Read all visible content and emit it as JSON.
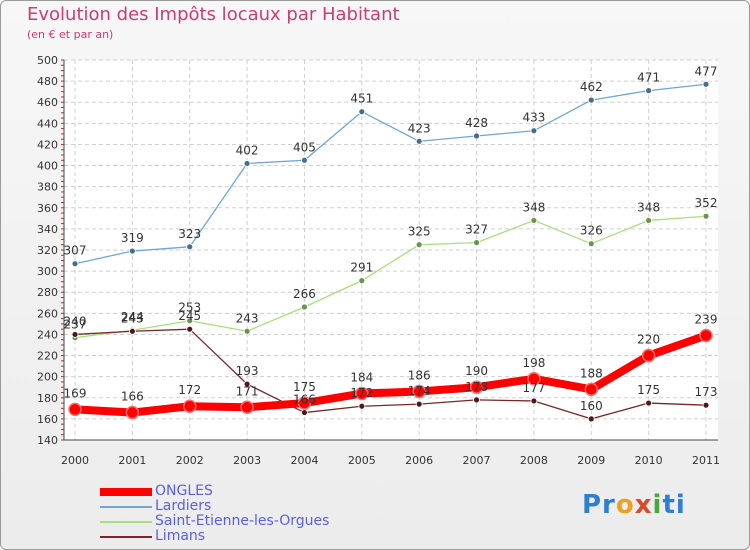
{
  "title": "Evolution des Impôts locaux par Habitant",
  "subtitle": "(en € et par an)",
  "logo": {
    "parts": [
      "Pr",
      "o",
      "x",
      "i",
      "ti"
    ],
    "colors": [
      "#2f7fd1",
      "#f0a020",
      "#d94a2a",
      "#4aa83a",
      "#2f7fd1"
    ]
  },
  "chart_data": {
    "type": "line",
    "title": "Evolution des Impôts locaux par Habitant",
    "subtitle": "(en € et par an)",
    "x": [
      "2000",
      "2001",
      "2002",
      "2003",
      "2004",
      "2005",
      "2006",
      "2007",
      "2008",
      "2009",
      "2010",
      "2011"
    ],
    "ylim": [
      140,
      500
    ],
    "yticks": [
      140,
      160,
      180,
      200,
      220,
      240,
      260,
      280,
      300,
      320,
      340,
      360,
      380,
      400,
      420,
      440,
      460,
      480,
      500
    ],
    "grid": true,
    "legend_position": "bottom-left",
    "series": [
      {
        "name": "ONGLES",
        "color": "#ff0000",
        "width": 8,
        "marker": 6,
        "values": [
          169,
          166,
          172,
          171,
          175,
          184,
          186,
          190,
          198,
          188,
          220,
          239
        ],
        "labels": [
          "169",
          "166",
          "172",
          "171",
          "175",
          "184",
          "186",
          "190",
          "198",
          "188",
          "220",
          "239"
        ]
      },
      {
        "name": "Lardiers",
        "color": "#6fa6d6",
        "width": 1.3,
        "marker": 3,
        "values": [
          307,
          319,
          323,
          402,
          405,
          451,
          423,
          428,
          433,
          462,
          471,
          477
        ],
        "labels": [
          "307",
          "319",
          "323",
          "402",
          "405",
          "451",
          "423",
          "428",
          "433",
          "462",
          "471",
          "477"
        ]
      },
      {
        "name": "Saint-Etienne-les-Orgues",
        "color": "#a6e07a",
        "width": 1.3,
        "marker": 3,
        "values": [
          237,
          244,
          253,
          243,
          266,
          291,
          325,
          327,
          348,
          326,
          348,
          352
        ],
        "labels": [
          "237",
          "244",
          "253",
          "243",
          "266",
          "291",
          "325",
          "327",
          "348",
          "326",
          "348",
          "352"
        ]
      },
      {
        "name": "Limans",
        "color": "#7a2626",
        "width": 1.3,
        "marker": 3,
        "values": [
          240,
          243,
          245,
          193,
          166,
          172,
          174,
          178,
          177,
          160,
          175,
          173
        ],
        "labels": [
          "240",
          "243",
          "245",
          "193",
          "166",
          "172",
          "174",
          "178",
          "177",
          "160",
          "175",
          "173"
        ]
      }
    ]
  }
}
